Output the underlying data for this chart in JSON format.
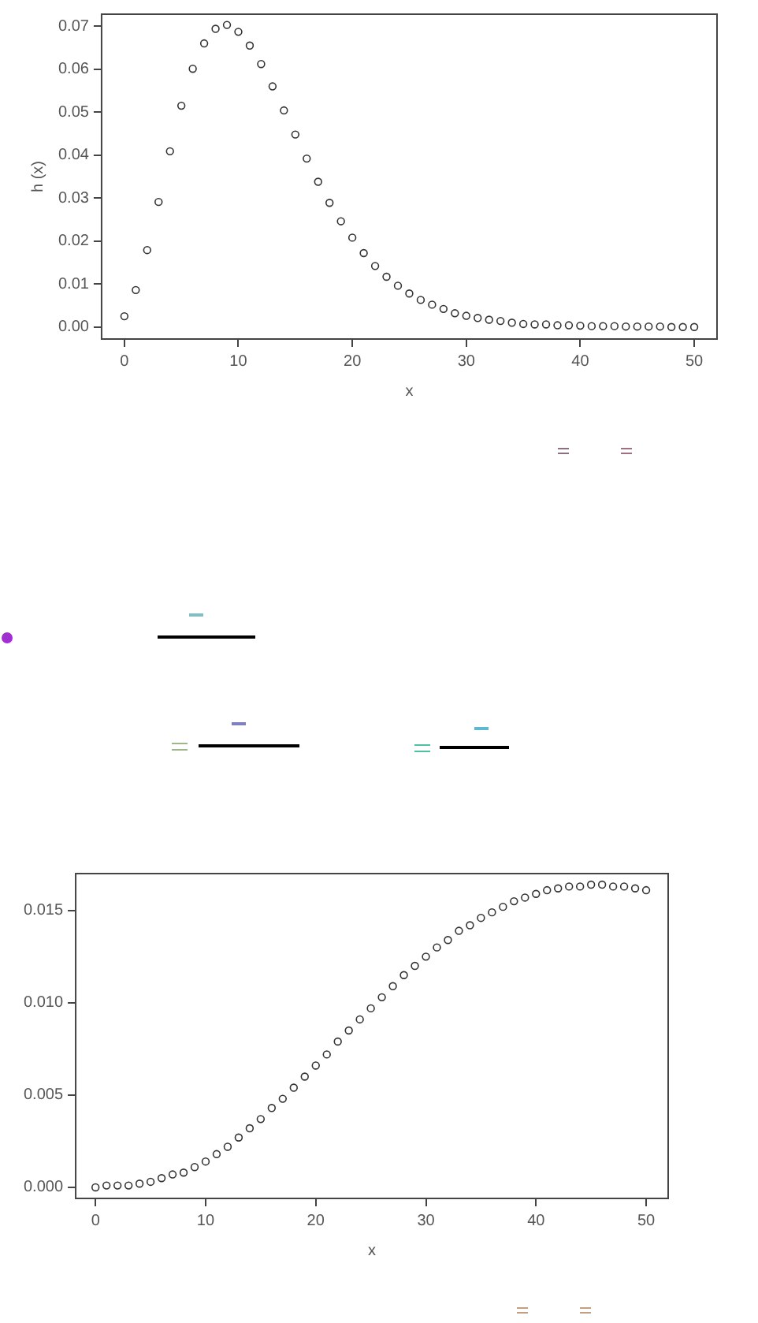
{
  "chart_data": [
    {
      "type": "scatter",
      "xlabel": "x",
      "ylabel": "h (x)",
      "marker": "circle",
      "grid": false,
      "x": [
        0,
        1,
        2,
        3,
        4,
        5,
        6,
        7,
        8,
        9,
        10,
        11,
        12,
        13,
        14,
        15,
        16,
        17,
        18,
        19,
        20,
        21,
        22,
        23,
        24,
        25,
        26,
        27,
        28,
        29,
        30,
        31,
        32,
        33,
        34,
        35,
        36,
        37,
        38,
        39,
        40,
        41,
        42,
        43,
        44,
        45,
        46,
        47,
        48,
        49,
        50
      ],
      "series": [
        {
          "color": "#333333",
          "values": [
            0.0025,
            0.0086,
            0.0179,
            0.0291,
            0.0409,
            0.0515,
            0.0601,
            0.066,
            0.0694,
            0.0703,
            0.0687,
            0.0655,
            0.0612,
            0.056,
            0.0504,
            0.0448,
            0.0392,
            0.0338,
            0.0289,
            0.0246,
            0.0208,
            0.0172,
            0.0142,
            0.0117,
            0.0096,
            0.0078,
            0.0063,
            0.0052,
            0.0042,
            0.0032,
            0.0026,
            0.0021,
            0.0017,
            0.0014,
            0.001,
            0.0007,
            0.0006,
            0.0006,
            0.0004,
            0.0004,
            0.0003,
            0.0002,
            0.0002,
            0.0002,
            0.0001,
            0.0001,
            0.0001,
            0.0001,
            0,
            0,
            0
          ]
        }
      ],
      "xlim": [
        -2,
        52
      ],
      "xticks": [
        0,
        10,
        20,
        30,
        40,
        50
      ],
      "ylim": [
        -0.0028,
        0.0728
      ],
      "yticks": [
        {
          "value": 0,
          "label": "0.00"
        },
        {
          "value": 0.01,
          "label": "0.01"
        },
        {
          "value": 0.02,
          "label": "0.02"
        },
        {
          "value": 0.03,
          "label": "0.03"
        },
        {
          "value": 0.04,
          "label": "0.04"
        },
        {
          "value": 0.05,
          "label": "0.05"
        },
        {
          "value": 0.06,
          "label": "0.06"
        },
        {
          "value": 0.07,
          "label": "0.07"
        }
      ]
    },
    {
      "type": "scatter",
      "xlabel": "x",
      "marker": "circle",
      "grid": false,
      "x": [
        0,
        1,
        2,
        3,
        4,
        5,
        6,
        7,
        8,
        9,
        10,
        11,
        12,
        13,
        14,
        15,
        16,
        17,
        18,
        19,
        20,
        21,
        22,
        23,
        24,
        25,
        26,
        27,
        28,
        29,
        30,
        31,
        32,
        33,
        34,
        35,
        36,
        37,
        38,
        39,
        40,
        41,
        42,
        43,
        44,
        45,
        46,
        47,
        48,
        49,
        50
      ],
      "series": [
        {
          "color": "#333333",
          "values": [
            0,
            0.0001,
            0.0001,
            0.0001,
            0.0002,
            0.0003,
            0.0005,
            0.0007,
            0.0008,
            0.0011,
            0.0014,
            0.0018,
            0.0022,
            0.0027,
            0.0032,
            0.0037,
            0.0043,
            0.0048,
            0.0054,
            0.006,
            0.0066,
            0.0072,
            0.0079,
            0.0085,
            0.0091,
            0.0097,
            0.0103,
            0.0109,
            0.0115,
            0.012,
            0.0125,
            0.013,
            0.0134,
            0.0139,
            0.0142,
            0.0146,
            0.0149,
            0.0152,
            0.0155,
            0.0157,
            0.0159,
            0.0161,
            0.0162,
            0.0163,
            0.0163,
            0.0164,
            0.0164,
            0.0163,
            0.0163,
            0.0162,
            0.0161
          ]
        }
      ],
      "xlim": [
        -1.8,
        52
      ],
      "xticks": [
        0,
        10,
        20,
        30,
        40,
        50
      ],
      "ylim": [
        -0.0006,
        0.017
      ],
      "yticks": [
        {
          "value": 0,
          "label": "0.000"
        },
        {
          "value": 0.005,
          "label": "0.005"
        },
        {
          "value": 0.01,
          "label": "0.010"
        },
        {
          "value": 0.015,
          "label": "0.015"
        }
      ]
    }
  ]
}
